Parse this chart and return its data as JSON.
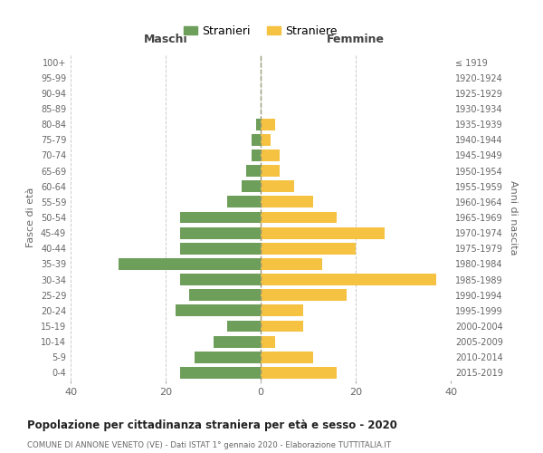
{
  "age_groups": [
    "0-4",
    "5-9",
    "10-14",
    "15-19",
    "20-24",
    "25-29",
    "30-34",
    "35-39",
    "40-44",
    "45-49",
    "50-54",
    "55-59",
    "60-64",
    "65-69",
    "70-74",
    "75-79",
    "80-84",
    "85-89",
    "90-94",
    "95-99",
    "100+"
  ],
  "birth_years": [
    "2015-2019",
    "2010-2014",
    "2005-2009",
    "2000-2004",
    "1995-1999",
    "1990-1994",
    "1985-1989",
    "1980-1984",
    "1975-1979",
    "1970-1974",
    "1965-1969",
    "1960-1964",
    "1955-1959",
    "1950-1954",
    "1945-1949",
    "1940-1944",
    "1935-1939",
    "1930-1934",
    "1925-1929",
    "1920-1924",
    "≤ 1919"
  ],
  "males": [
    17,
    14,
    10,
    7,
    18,
    15,
    17,
    30,
    17,
    17,
    17,
    7,
    4,
    3,
    2,
    2,
    1,
    0,
    0,
    0,
    0
  ],
  "females": [
    16,
    11,
    3,
    9,
    9,
    18,
    37,
    13,
    20,
    26,
    16,
    11,
    7,
    4,
    4,
    2,
    3,
    0,
    0,
    0,
    0
  ],
  "male_color": "#6d9e5a",
  "female_color": "#f5c242",
  "background_color": "#ffffff",
  "grid_color": "#cccccc",
  "title": "Popolazione per cittadinanza straniera per età e sesso - 2020",
  "subtitle": "COMUNE DI ANNONE VENETO (VE) - Dati ISTAT 1° gennaio 2020 - Elaborazione TUTTITALIA.IT",
  "xlabel_left": "Maschi",
  "xlabel_right": "Femmine",
  "ylabel_left": "Fasce di età",
  "ylabel_right": "Anni di nascita",
  "legend_male": "Stranieri",
  "legend_female": "Straniere",
  "xlim": 40,
  "bar_height": 0.75
}
